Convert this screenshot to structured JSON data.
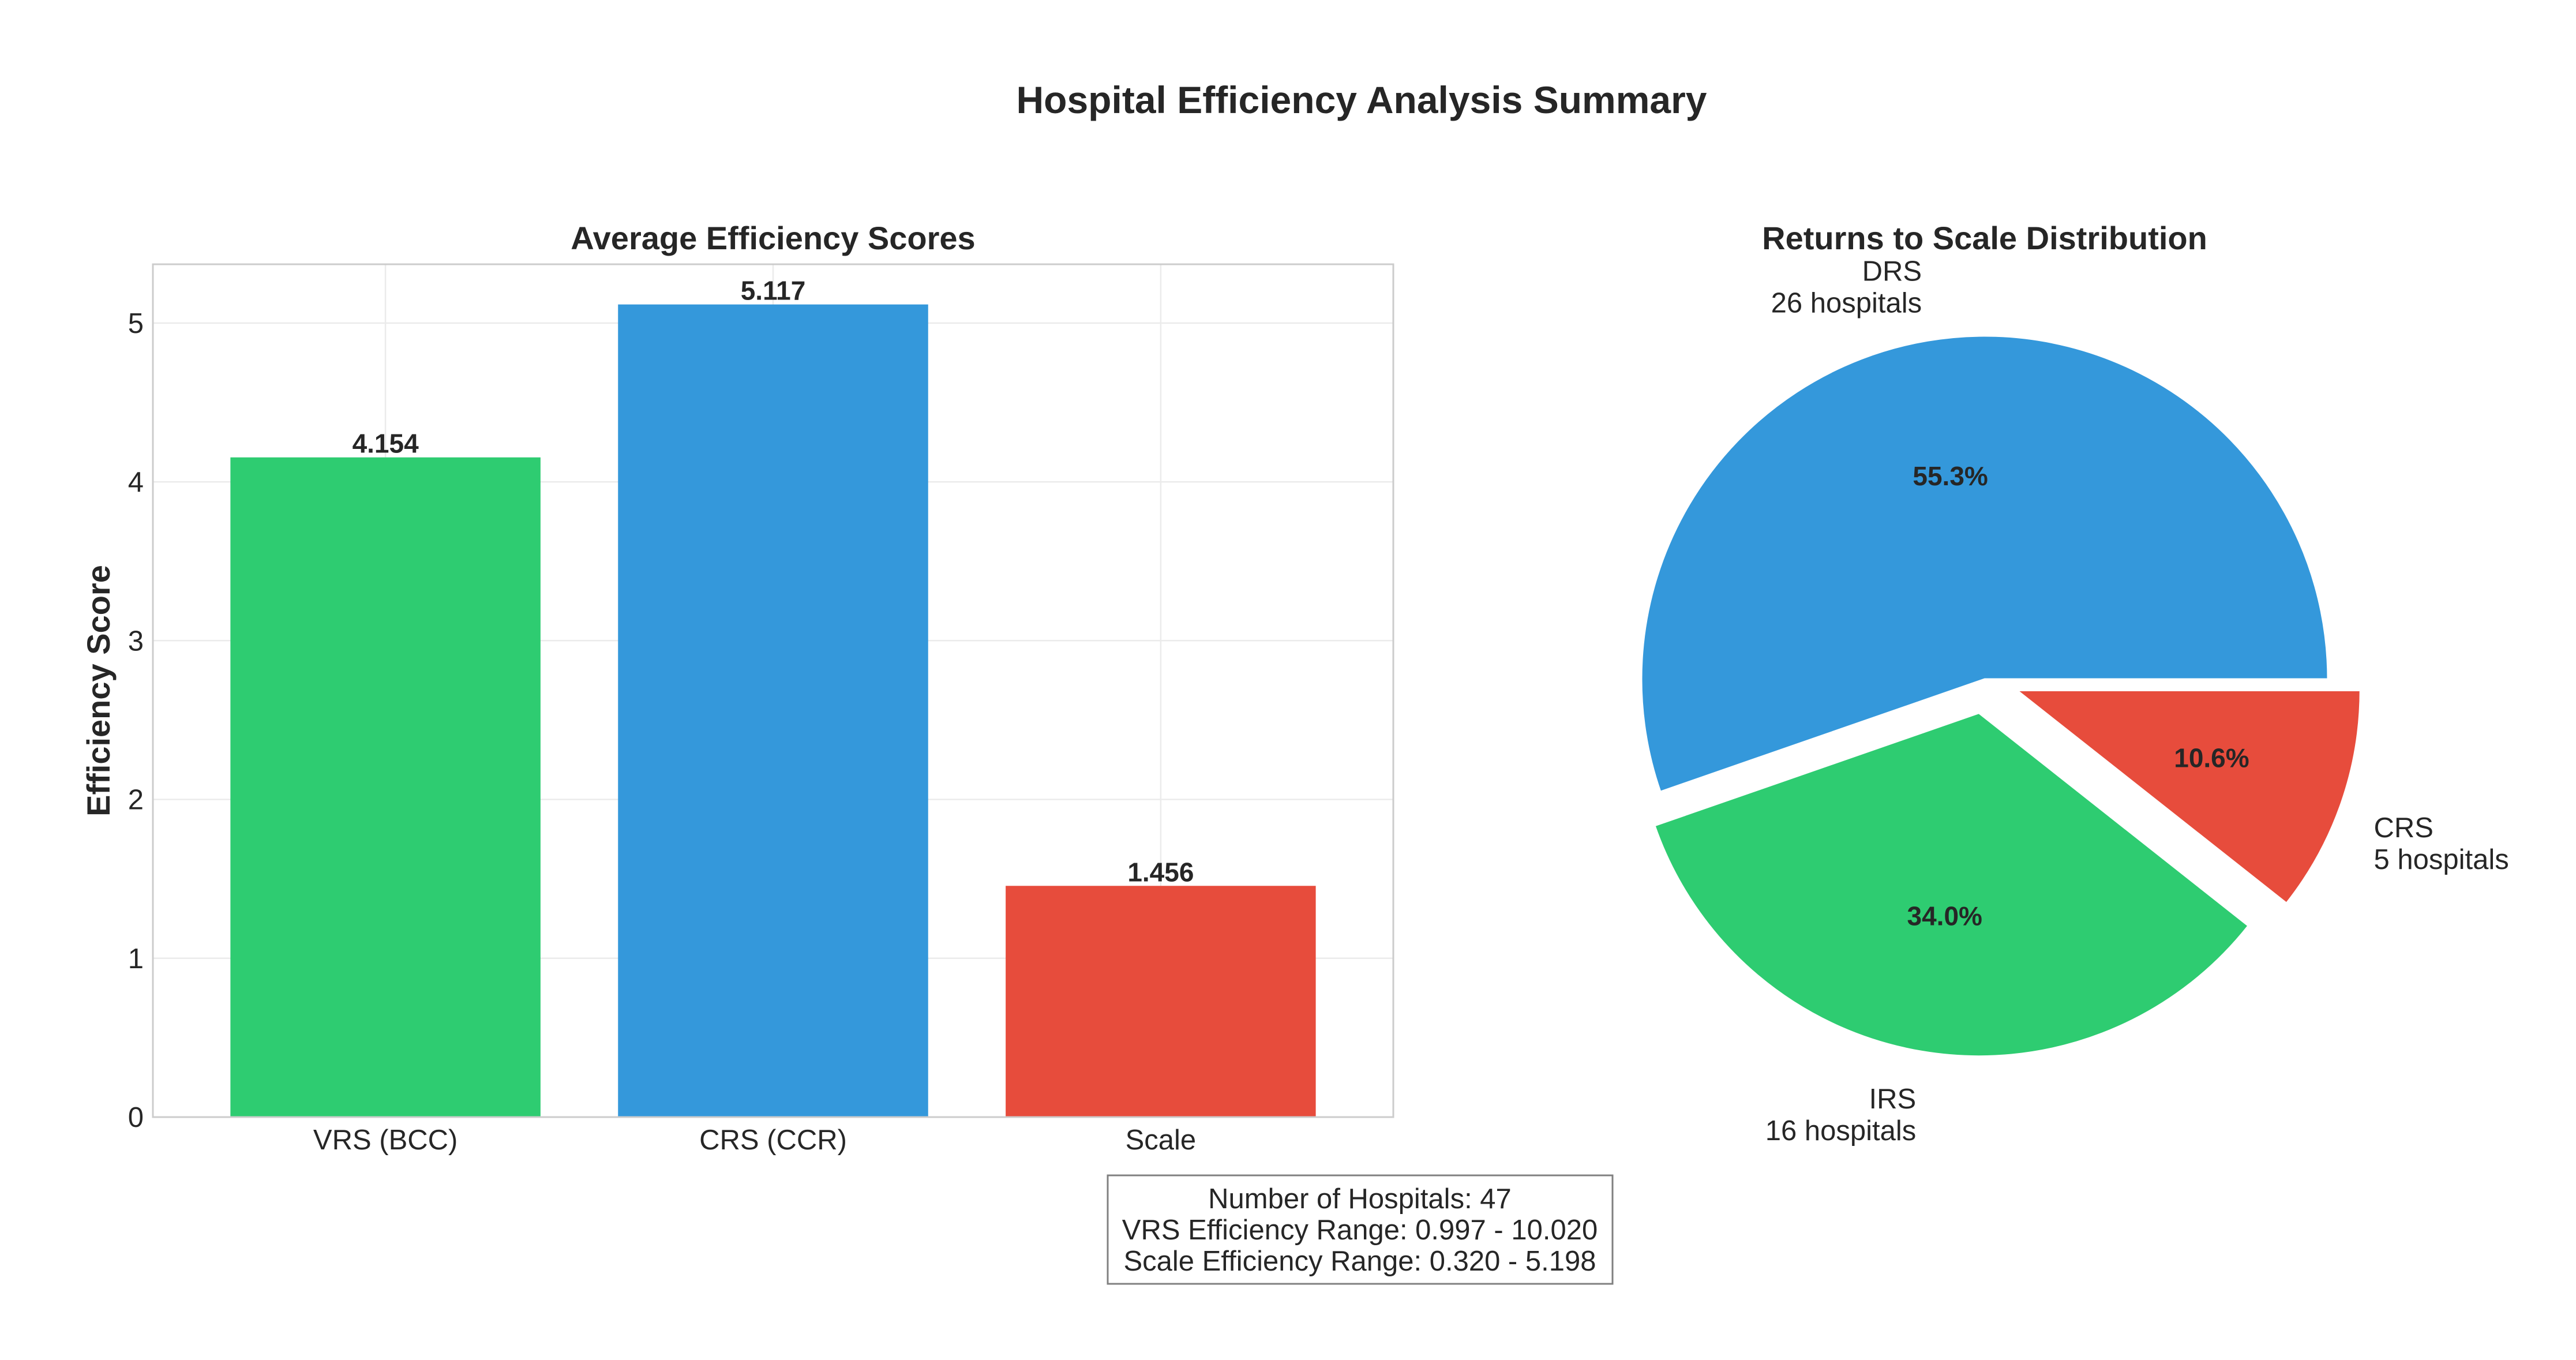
{
  "suptitle": "Hospital Efficiency Analysis Summary",
  "chart_data": [
    {
      "type": "bar",
      "title": "Average Efficiency Scores",
      "ylabel": "Efficiency Score",
      "xlabel": "",
      "categories": [
        "VRS (BCC)",
        "CRS (CCR)",
        "Scale"
      ],
      "values": [
        4.154,
        5.117,
        1.456
      ],
      "value_labels": [
        "4.154",
        "5.117",
        "1.456"
      ],
      "colors": [
        "#2ecc71",
        "#3498db",
        "#e74c3c"
      ],
      "ylim": [
        0,
        5.37
      ],
      "yticks": [
        0,
        1,
        2,
        3,
        4,
        5
      ],
      "grid": true
    },
    {
      "type": "pie",
      "title": "Returns to Scale Distribution",
      "slices": [
        {
          "label": "DRS",
          "sublabel": "26 hospitals",
          "count": 26,
          "pct_label": "55.3%",
          "color": "#3498db",
          "exploded": false
        },
        {
          "label": "IRS",
          "sublabel": "16 hospitals",
          "count": 16,
          "pct_label": "34.0%",
          "color": "#2ecc71",
          "exploded": true
        },
        {
          "label": "CRS",
          "sublabel": "5 hospitals",
          "count": 5,
          "pct_label": "10.6%",
          "color": "#e74c3c",
          "exploded": true
        }
      ]
    }
  ],
  "summary_box": {
    "lines": [
      "Number of Hospitals: 47",
      "VRS Efficiency Range: 0.997 - 10.020",
      "Scale Efficiency Range: 0.320 - 5.198"
    ]
  }
}
